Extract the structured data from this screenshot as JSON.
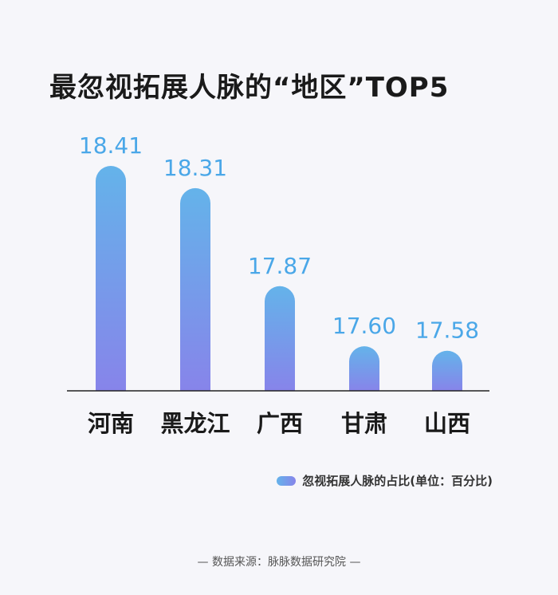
{
  "title": "最忽视拓展人脉的“地区”TOP5",
  "legend_label": "忽视拓展人脉的占比(单位：百分比)",
  "source": "— 数据来源：脉脉数据研究院 —",
  "colors": {
    "bar_top": "#64b3ea",
    "bar_bottom": "#8784ea",
    "value_label": "#4aa7e8",
    "axis": "#222222",
    "category_label": "#1a1a1a"
  },
  "chart_data": {
    "type": "bar",
    "title": "最忽视拓展人脉的“地区”TOP5",
    "categories": [
      "河南",
      "黑龙江",
      "广西",
      "甘肃",
      "山西"
    ],
    "series": [
      {
        "name": "忽视拓展人脉的占比(单位：百分比)",
        "values": [
          18.41,
          18.31,
          17.87,
          17.6,
          17.58
        ]
      }
    ],
    "value_labels": [
      "18.41",
      "18.31",
      "17.87",
      "17.60",
      "17.58"
    ],
    "xlabel": "",
    "ylabel": "",
    "ylim": [
      17.4,
      18.41
    ],
    "grid": false,
    "legend_placement": "bottom-right"
  }
}
